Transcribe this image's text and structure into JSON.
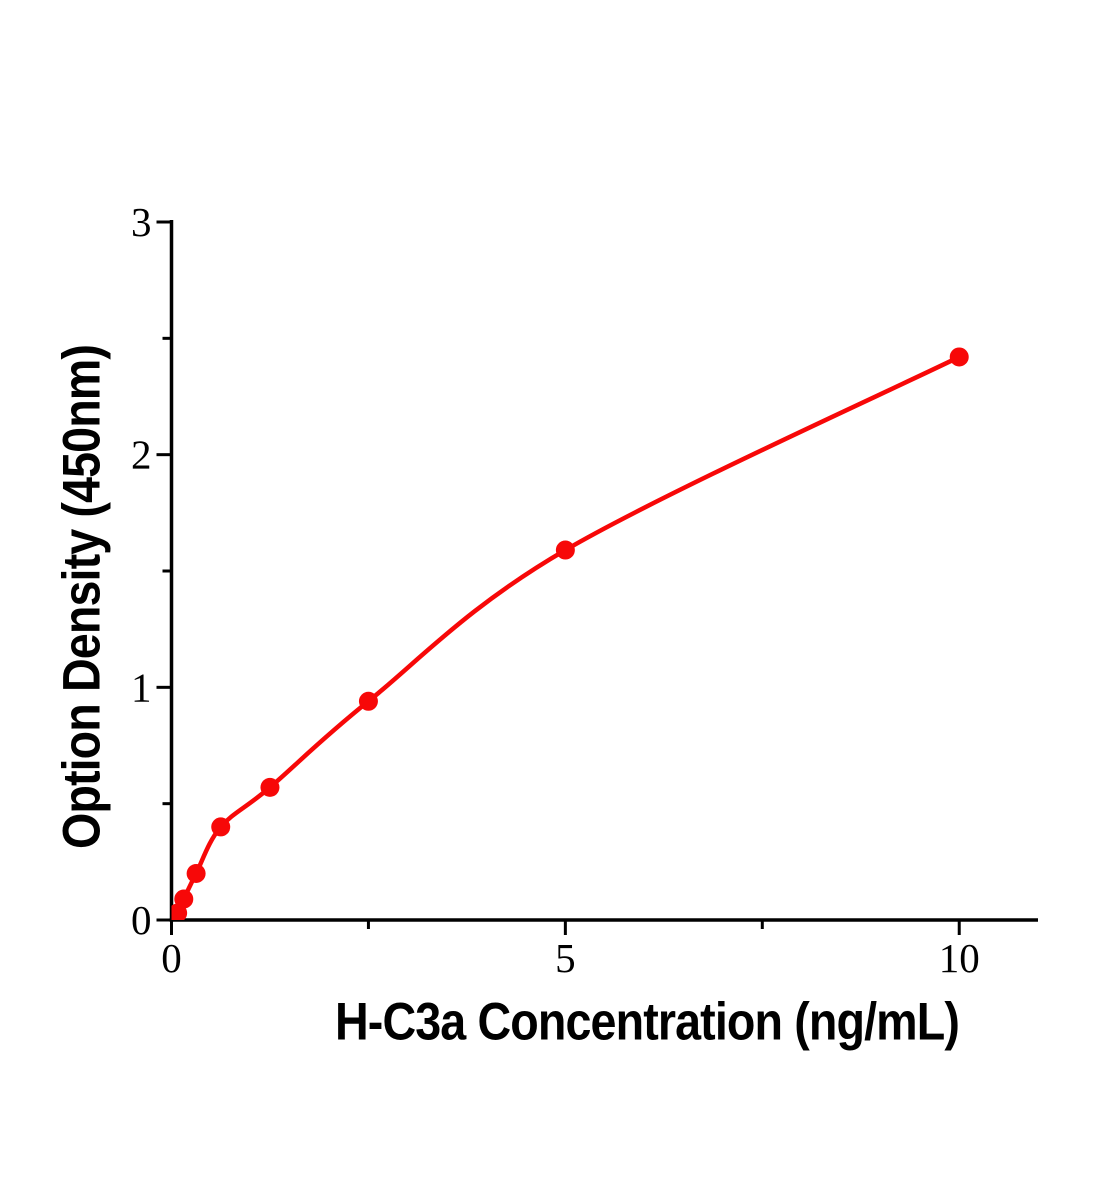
{
  "chart_data": {
    "type": "scatter",
    "title": "",
    "xlabel": "H-C3a Concentration (ng/mL)",
    "ylabel": "Option Density (450nm)",
    "x": [
      0.078,
      0.156,
      0.3125,
      0.625,
      1.25,
      2.5,
      5,
      10
    ],
    "y": [
      0.03,
      0.09,
      0.2,
      0.4,
      0.57,
      0.94,
      1.59,
      2.42
    ],
    "xlim": [
      0,
      11
    ],
    "ylim": [
      0,
      3
    ],
    "x_major_ticks": [
      0,
      5,
      10
    ],
    "x_tick_labels": [
      "0",
      "5",
      "10"
    ],
    "x_minor_ticks": [
      2.5,
      7.5
    ],
    "y_major_ticks": [
      0,
      1,
      2,
      3
    ],
    "y_tick_labels": [
      "0",
      "1",
      "2",
      "3"
    ],
    "y_minor_ticks": [
      0.5,
      1.5,
      2.5
    ],
    "grid": false,
    "legend": null,
    "series_name": "standard-curve",
    "marker": "circle",
    "curve": "smooth",
    "colors": {
      "series": "#f70808",
      "axis": "#000000",
      "text": "#000000",
      "background": "#ffffff"
    }
  }
}
